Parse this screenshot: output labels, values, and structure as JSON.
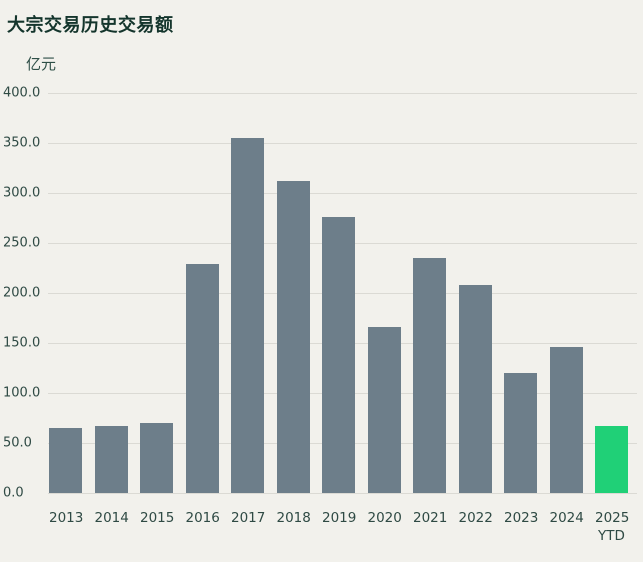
{
  "chart_data": {
    "type": "bar",
    "title": "大宗交易历史交易额",
    "ylabel": "亿元",
    "categories": [
      "2013",
      "2014",
      "2015",
      "2016",
      "2017",
      "2018",
      "2019",
      "2020",
      "2021",
      "2022",
      "2023",
      "2024",
      "2025 YTD"
    ],
    "values": [
      65,
      67,
      70,
      229,
      355,
      312,
      276,
      166,
      235,
      208,
      120,
      146,
      67
    ],
    "ylim": [
      0,
      400
    ],
    "yticks": [
      0.0,
      50.0,
      100.0,
      150.0,
      200.0,
      250.0,
      300.0,
      350.0,
      400.0
    ],
    "grid": true,
    "legend_position": "none",
    "bar_color": "#6d7e8a",
    "highlight_color": "#20d077",
    "highlight_index": 12
  },
  "colors": {
    "background": "#f2f1ec",
    "title_text": "#14352c",
    "axis_text": "#2f4a44",
    "gridline": "#dbdad4"
  }
}
